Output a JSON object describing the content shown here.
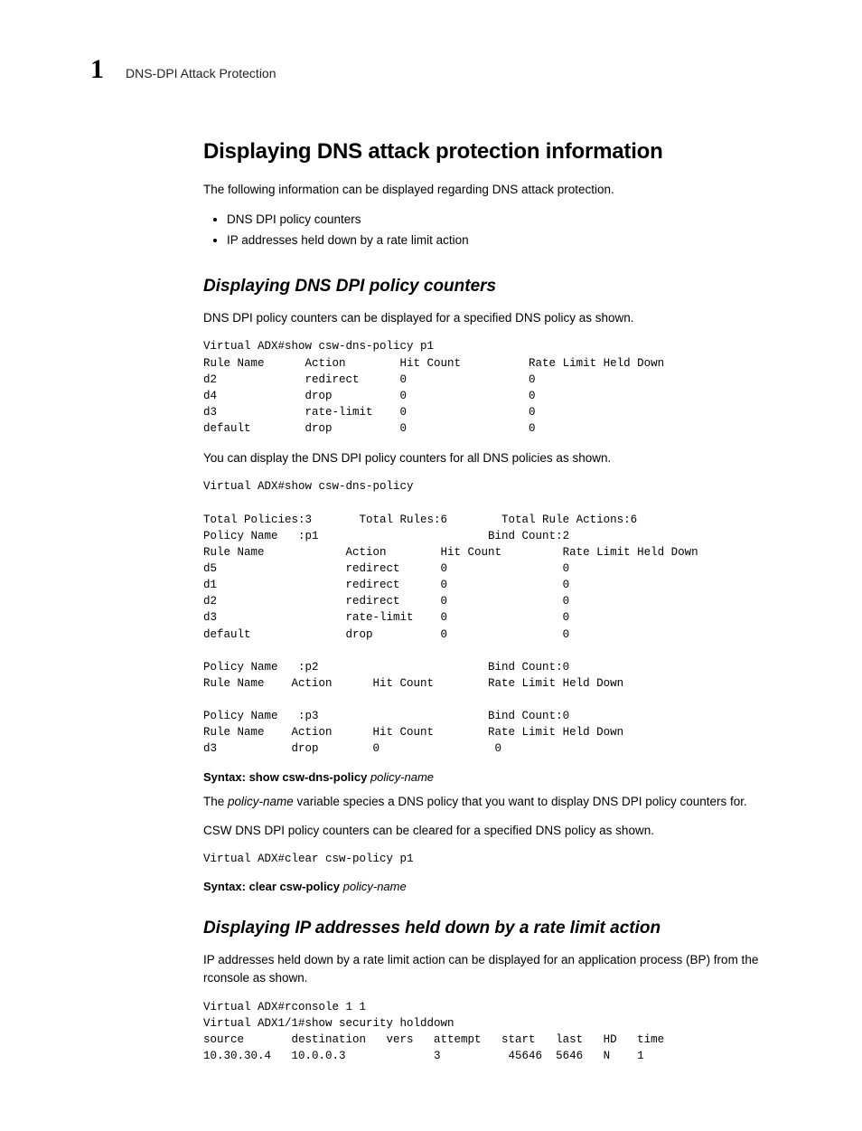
{
  "header": {
    "chapter_number": "1",
    "running_title": "DNS-DPI Attack Protection"
  },
  "section": {
    "title": "Displaying DNS attack protection information",
    "intro": "The following information can be displayed regarding DNS attack protection.",
    "bullets": [
      "DNS DPI policy counters",
      "IP addresses held down by a rate limit action"
    ]
  },
  "sub1": {
    "title": "Displaying DNS DPI policy counters",
    "p1": "DNS DPI policy counters can be displayed for a specified DNS policy as shown.",
    "code1": "Virtual ADX#show csw-dns-policy p1\nRule Name      Action        Hit Count          Rate Limit Held Down\nd2             redirect      0                  0\nd4             drop          0                  0\nd3             rate-limit    0                  0\ndefault        drop          0                  0",
    "p2": "You can display the DNS DPI policy counters for all DNS policies as shown.",
    "code2": "Virtual ADX#show csw-dns-policy\n\nTotal Policies:3       Total Rules:6        Total Rule Actions:6\nPolicy Name   :p1                         Bind Count:2\nRule Name            Action        Hit Count         Rate Limit Held Down\nd5                   redirect      0                 0\nd1                   redirect      0                 0\nd2                   redirect      0                 0\nd3                   rate-limit    0                 0\ndefault              drop          0                 0\n\nPolicy Name   :p2                         Bind Count:0\nRule Name    Action      Hit Count        Rate Limit Held Down\n\nPolicy Name   :p3                         Bind Count:0\nRule Name    Action      Hit Count        Rate Limit Held Down\nd3           drop        0                 0",
    "syntax1_label": "Syntax:  ",
    "syntax1_cmd": "show csw-dns-policy ",
    "syntax1_arg": "policy-name",
    "p3_pre": "The ",
    "p3_var": "policy-name",
    "p3_post": " variable species a DNS policy that you want to display DNS DPI policy counters for.",
    "p4": "CSW DNS DPI policy counters can be cleared for a specified DNS policy as shown.",
    "code3": "Virtual ADX#clear csw-policy p1",
    "syntax2_label": "Syntax:  ",
    "syntax2_cmd": "clear csw-policy ",
    "syntax2_arg": "policy-name"
  },
  "sub2": {
    "title": "Displaying IP addresses held down by a rate limit action",
    "p1": "IP addresses held down by a rate limit action can be displayed for an application process (BP) from the rconsole as shown.",
    "code1": "Virtual ADX#rconsole 1 1\nVirtual ADX1/1#show security holddown\nsource       destination   vers   attempt   start   last   HD   time\n10.30.30.4   10.0.0.3             3          45646  5646   N    1"
  }
}
